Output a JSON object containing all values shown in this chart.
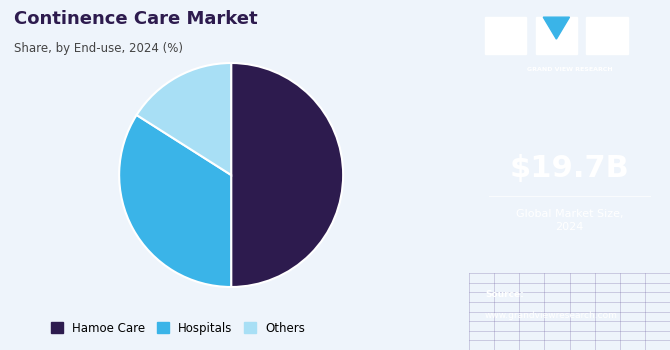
{
  "title": "Continence Care Market",
  "subtitle": "Share, by End-use, 2024 (%)",
  "pie_labels": [
    "Hamoe Care",
    "Hospitals",
    "Others"
  ],
  "pie_values": [
    50,
    34,
    16
  ],
  "pie_colors": [
    "#2d1b4e",
    "#3ab4e8",
    "#a8dff5"
  ],
  "pie_startangle": 90,
  "bg_color": "#eef4fb",
  "right_panel_color": "#3b1f5e",
  "right_panel_bottom_color": "#4a3a7a",
  "market_size_value": "$19.7B",
  "market_size_label": "Global Market Size,\n2024",
  "legend_labels": [
    "Hamoe Care",
    "Hospitals",
    "Others"
  ],
  "legend_colors": [
    "#2d1b4e",
    "#3ab4e8",
    "#a8dff5"
  ],
  "title_color": "#2d1b4e",
  "subtitle_color": "#444444",
  "logo_text": "GRAND VIEW RESEARCH",
  "source_line1": "Source:",
  "source_line2": "www.grandviewresearch.com"
}
